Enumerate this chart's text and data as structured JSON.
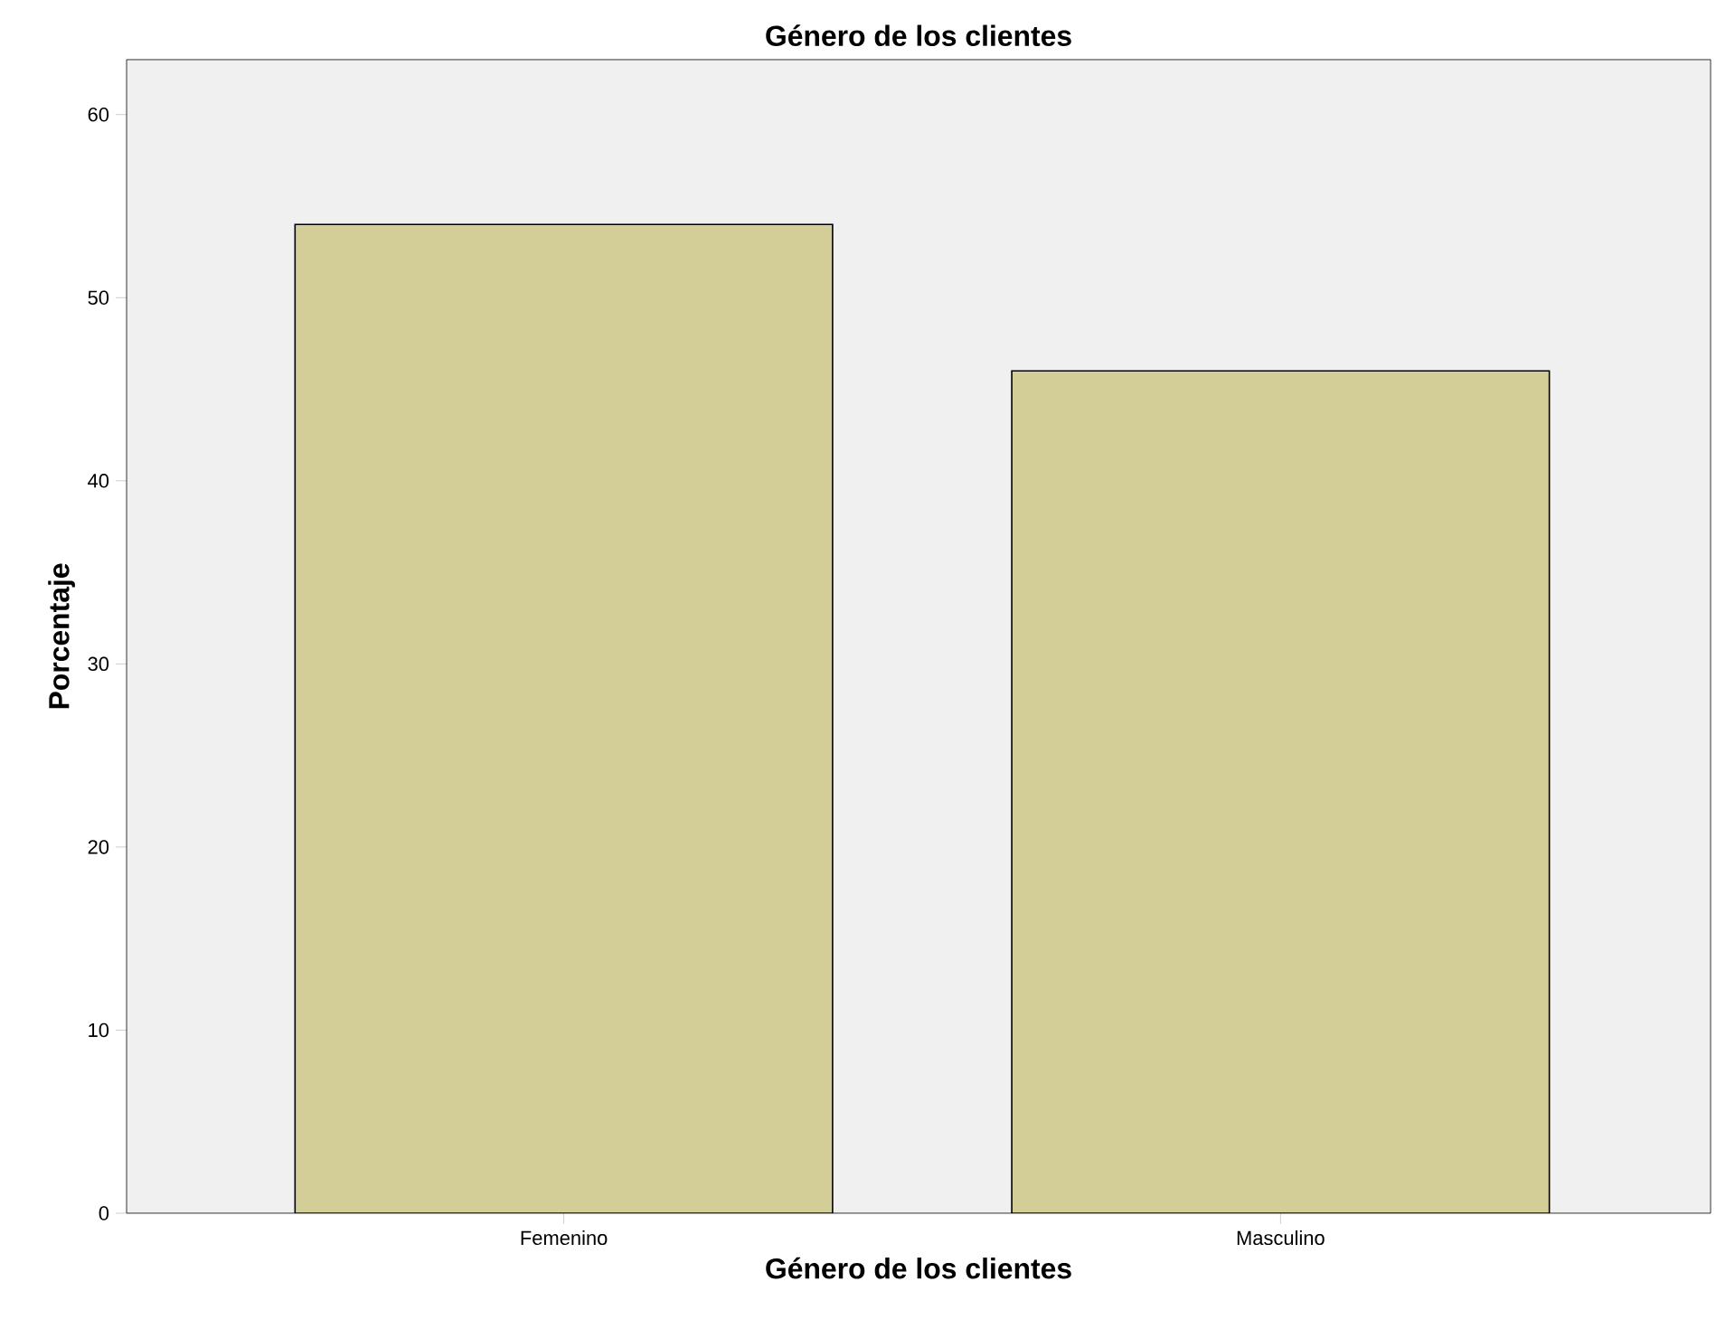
{
  "chart_data": {
    "type": "bar",
    "title": "Género de los clientes",
    "xlabel": "Género de los clientes",
    "ylabel": "Porcentaje",
    "categories": [
      "Femenino",
      "Masculino"
    ],
    "values": [
      54,
      46
    ],
    "color": "#d3cd98",
    "ylim": [
      0,
      63
    ],
    "yticks": [
      0,
      10,
      20,
      30,
      40,
      50,
      60
    ],
    "grid": false
  }
}
